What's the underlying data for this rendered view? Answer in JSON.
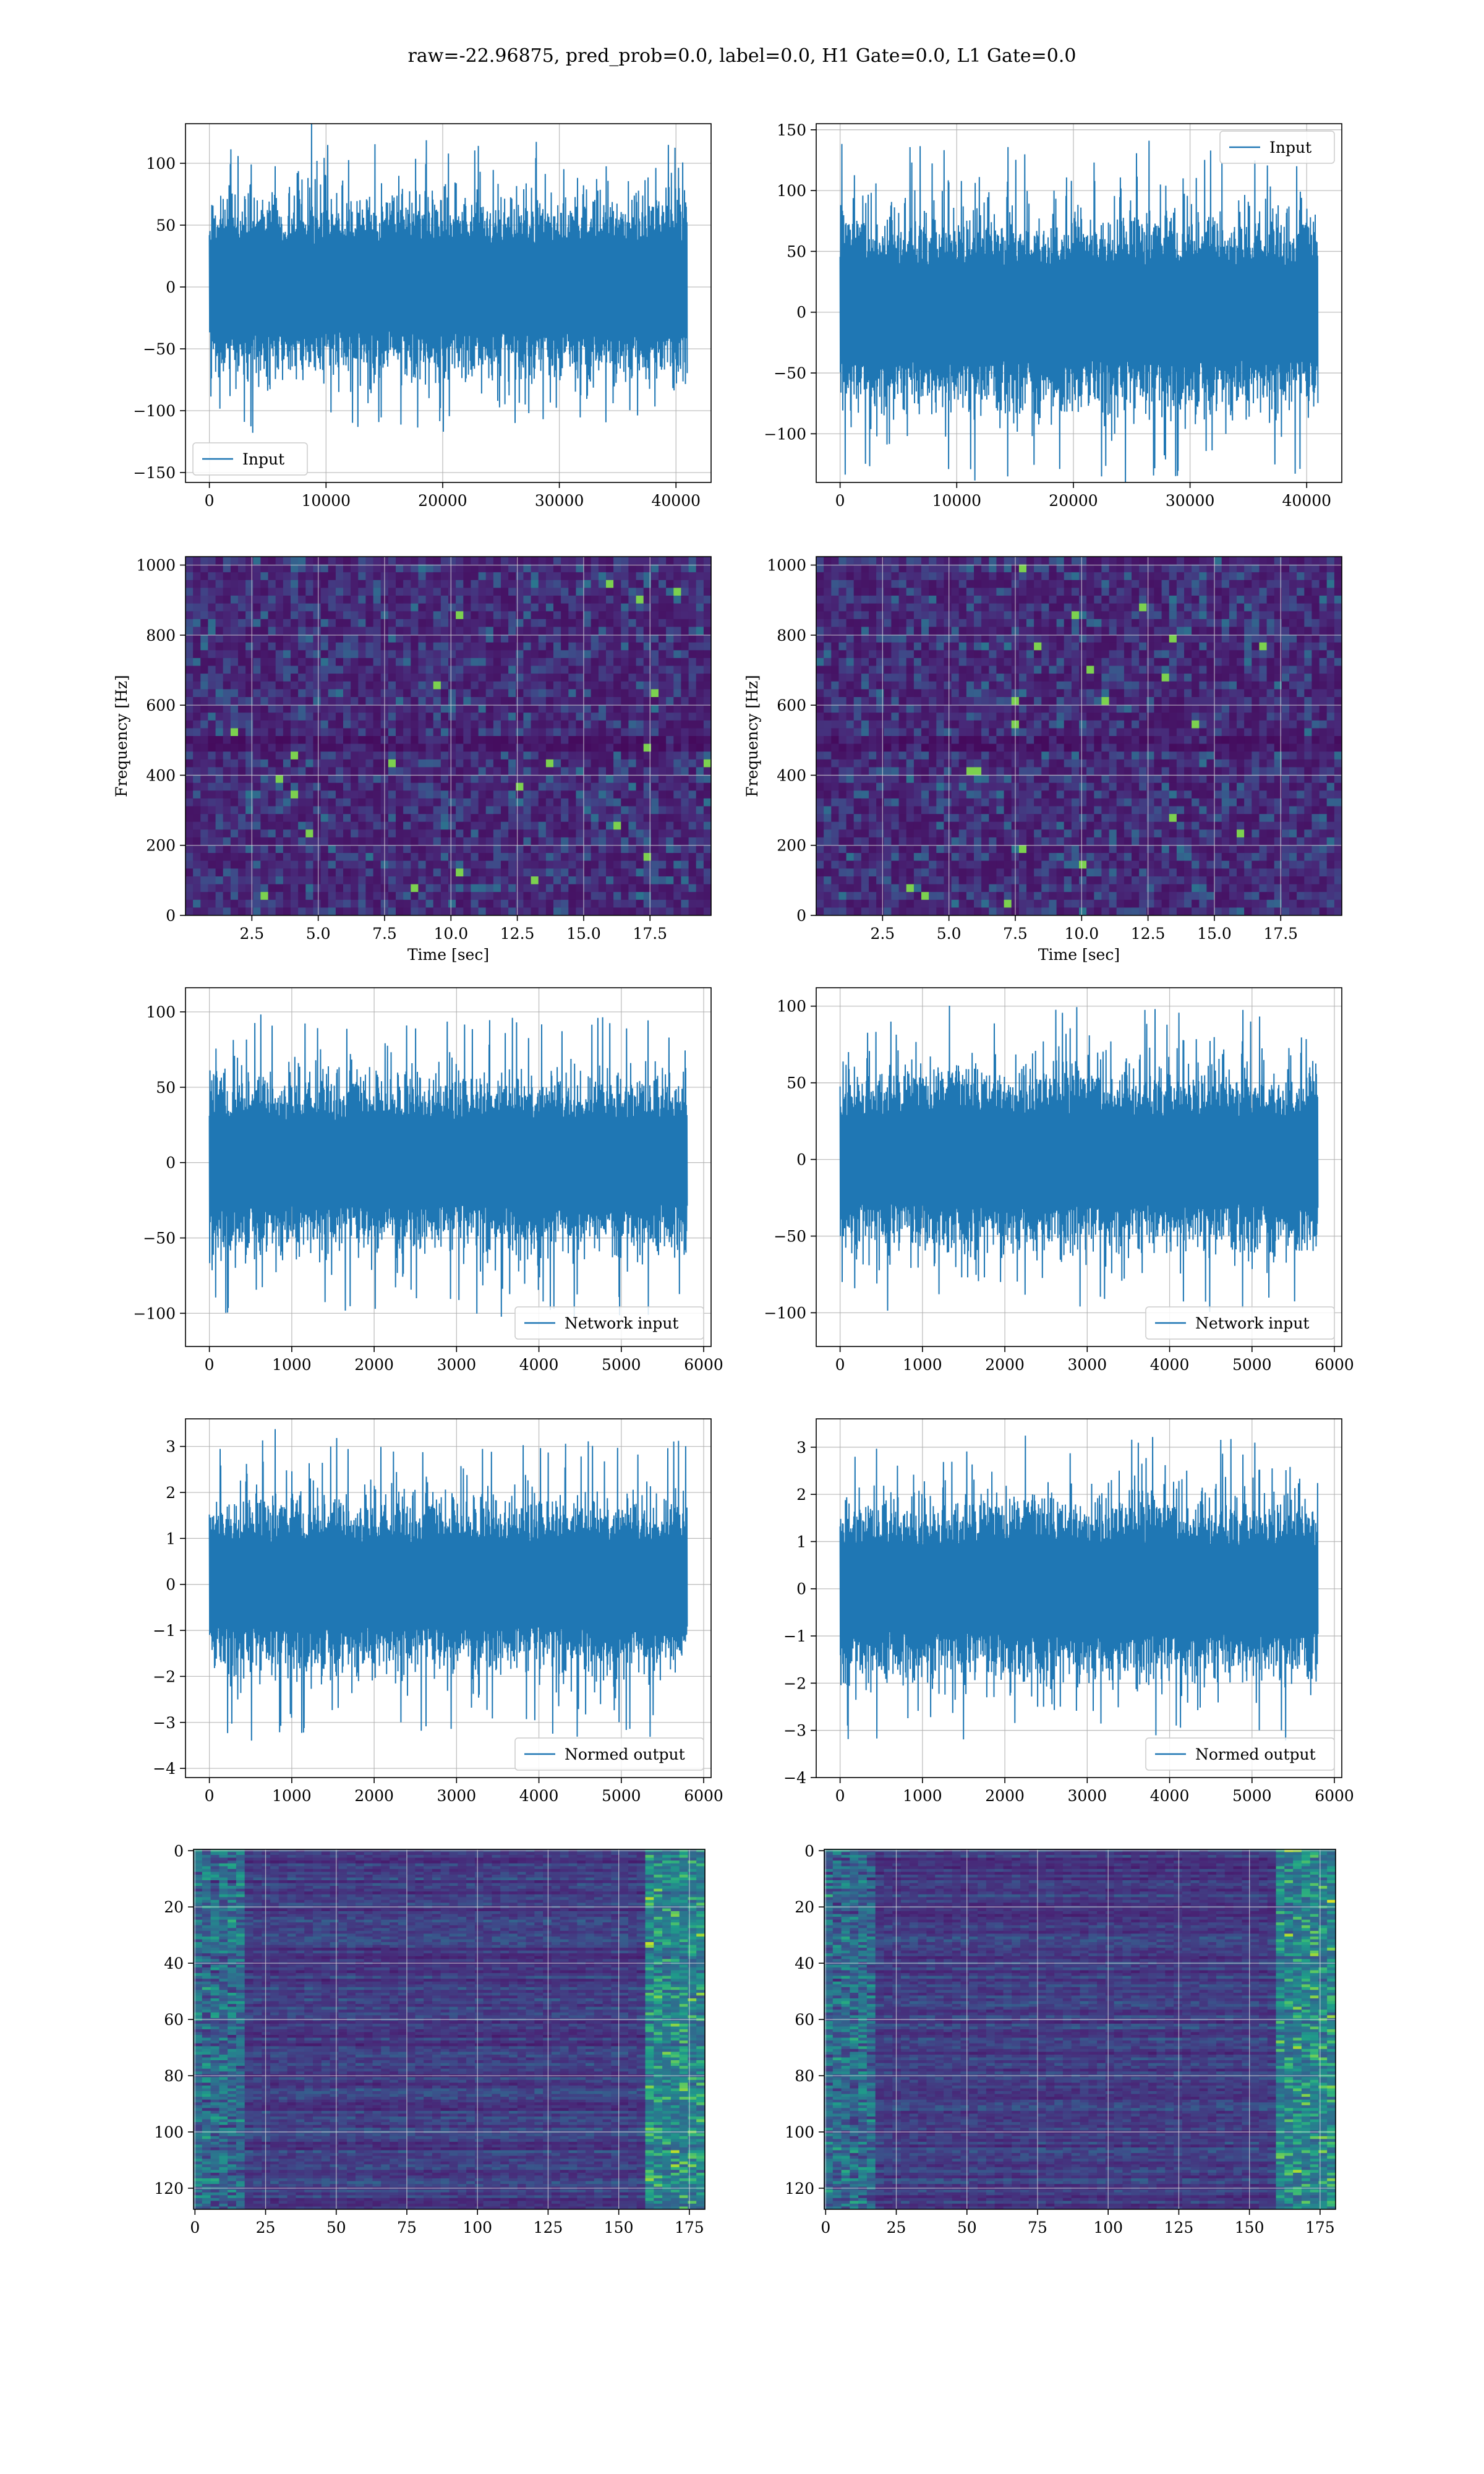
{
  "title": "raw=-22.96875, pred_prob=0.0, label=0.0, H1 Gate=0.0, L1 Gate=0.0",
  "colors": {
    "line": "#1f77b4",
    "grid": "#b0b0b0",
    "viridis_dark": "#440154",
    "viridis_mid": "#21918c",
    "viridis_bright": "#fde725"
  },
  "chart_data": [
    {
      "id": "ts-input-h1",
      "type": "line",
      "legend": "Input",
      "legend_loc": "lower-left",
      "xlim": [
        -2048,
        43008
      ],
      "ylim": [
        -158,
        132
      ],
      "xticks": [
        0,
        10000,
        20000,
        30000,
        40000
      ],
      "xtick_labels": [
        "0",
        "10000",
        "20000",
        "30000",
        "40000"
      ],
      "yticks": [
        -150,
        -100,
        -50,
        0,
        50,
        100
      ],
      "ytick_labels": [
        "−150",
        "−100",
        "−50",
        "0",
        "50",
        "100"
      ],
      "x_range": [
        0,
        40960
      ],
      "band": 50,
      "peak": 120,
      "grid": true
    },
    {
      "id": "ts-input-l1",
      "type": "line",
      "legend": "Input",
      "legend_loc": "upper-right",
      "xlim": [
        -2048,
        43008
      ],
      "ylim": [
        -140,
        155
      ],
      "xticks": [
        0,
        10000,
        20000,
        30000,
        40000
      ],
      "xtick_labels": [
        "0",
        "10000",
        "20000",
        "30000",
        "40000"
      ],
      "yticks": [
        -100,
        -50,
        0,
        50,
        100,
        150
      ],
      "ytick_labels": [
        "−100",
        "−50",
        "0",
        "50",
        "100",
        "150"
      ],
      "x_range": [
        0,
        40960
      ],
      "band": 55,
      "peak": 142,
      "grid": true
    },
    {
      "id": "spec-h1",
      "type": "heatmap",
      "xlabel": "Time [sec]",
      "ylabel": "Frequency [Hz]",
      "xlim": [
        0,
        19.8
      ],
      "ylim": [
        0,
        1024
      ],
      "xticks": [
        2.5,
        5.0,
        7.5,
        10.0,
        12.5,
        15.0,
        17.5
      ],
      "xtick_labels": [
        "2.5",
        "5.0",
        "7.5",
        "10.0",
        "12.5",
        "15.0",
        "17.5"
      ],
      "yticks": [
        0,
        200,
        400,
        600,
        800,
        1000
      ],
      "ytick_labels": [
        "0",
        "200",
        "400",
        "600",
        "800",
        "1000"
      ],
      "grid": true
    },
    {
      "id": "spec-l1",
      "type": "heatmap",
      "xlabel": "Time [sec]",
      "ylabel": "Frequency [Hz]",
      "xlim": [
        0,
        19.8
      ],
      "ylim": [
        0,
        1024
      ],
      "xticks": [
        2.5,
        5.0,
        7.5,
        10.0,
        12.5,
        15.0,
        17.5
      ],
      "xtick_labels": [
        "2.5",
        "5.0",
        "7.5",
        "10.0",
        "12.5",
        "15.0",
        "17.5"
      ],
      "yticks": [
        0,
        200,
        400,
        600,
        800,
        1000
      ],
      "ytick_labels": [
        "0",
        "200",
        "400",
        "600",
        "800",
        "1000"
      ],
      "grid": true
    },
    {
      "id": "net-input-h1",
      "type": "line",
      "legend": "Network input",
      "legend_loc": "lower-right",
      "xlim": [
        -290,
        6090
      ],
      "ylim": [
        -122,
        116
      ],
      "xticks": [
        0,
        1000,
        2000,
        3000,
        4000,
        5000,
        6000
      ],
      "xtick_labels": [
        "0",
        "1000",
        "2000",
        "3000",
        "4000",
        "5000",
        "6000"
      ],
      "yticks": [
        -100,
        -50,
        0,
        50,
        100
      ],
      "ytick_labels": [
        "−100",
        "−50",
        "0",
        "50",
        "100"
      ],
      "x_range": [
        0,
        5800
      ],
      "band": 40,
      "peak": 105,
      "grid": true
    },
    {
      "id": "net-input-l1",
      "type": "line",
      "legend": "Network input",
      "legend_loc": "lower-right",
      "xlim": [
        -290,
        6090
      ],
      "ylim": [
        -122,
        112
      ],
      "xticks": [
        0,
        1000,
        2000,
        3000,
        4000,
        5000,
        6000
      ],
      "xtick_labels": [
        "0",
        "1000",
        "2000",
        "3000",
        "4000",
        "5000",
        "6000"
      ],
      "yticks": [
        -100,
        -50,
        0,
        50,
        100
      ],
      "ytick_labels": [
        "−100",
        "−50",
        "0",
        "50",
        "100"
      ],
      "x_range": [
        0,
        5800
      ],
      "band": 40,
      "peak": 102,
      "grid": true
    },
    {
      "id": "normed-h1",
      "type": "line",
      "legend": "Normed output",
      "legend_loc": "lower-right",
      "xlim": [
        -290,
        6090
      ],
      "ylim": [
        -4.2,
        3.6
      ],
      "xticks": [
        0,
        1000,
        2000,
        3000,
        4000,
        5000,
        6000
      ],
      "xtick_labels": [
        "0",
        "1000",
        "2000",
        "3000",
        "4000",
        "5000",
        "6000"
      ],
      "yticks": [
        -4,
        -3,
        -2,
        -1,
        0,
        1,
        2,
        3
      ],
      "ytick_labels": [
        "−4",
        "−3",
        "−2",
        "−1",
        "0",
        "1",
        "2",
        "3"
      ],
      "x_range": [
        0,
        5800
      ],
      "band": 1.3,
      "peak": 3.4,
      "grid": true
    },
    {
      "id": "normed-l1",
      "type": "line",
      "legend": "Normed output",
      "legend_loc": "lower-right",
      "xlim": [
        -290,
        6090
      ],
      "ylim": [
        -4.0,
        3.6
      ],
      "xticks": [
        0,
        1000,
        2000,
        3000,
        4000,
        5000,
        6000
      ],
      "xtick_labels": [
        "0",
        "1000",
        "2000",
        "3000",
        "4000",
        "5000",
        "6000"
      ],
      "yticks": [
        -4,
        -3,
        -2,
        -1,
        0,
        1,
        2,
        3
      ],
      "ytick_labels": [
        "−4",
        "−3",
        "−2",
        "−1",
        "0",
        "1",
        "2",
        "3"
      ],
      "x_range": [
        0,
        5800
      ],
      "band": 1.3,
      "peak": 3.3,
      "grid": true
    },
    {
      "id": "features-h1",
      "type": "heatmap",
      "origin": "top",
      "xlim": [
        -0.5,
        180.5
      ],
      "ylim": [
        127.5,
        -0.5
      ],
      "xticks": [
        0,
        25,
        50,
        75,
        100,
        125,
        150,
        175
      ],
      "xtick_labels": [
        "0",
        "25",
        "50",
        "75",
        "100",
        "125",
        "150",
        "175"
      ],
      "yticks": [
        0,
        20,
        40,
        60,
        80,
        100,
        120
      ],
      "ytick_labels": [
        "0",
        "20",
        "40",
        "60",
        "80",
        "100",
        "120"
      ],
      "grid": true
    },
    {
      "id": "features-l1",
      "type": "heatmap",
      "origin": "top",
      "xlim": [
        -0.5,
        180.5
      ],
      "ylim": [
        127.5,
        -0.5
      ],
      "xticks": [
        0,
        25,
        50,
        75,
        100,
        125,
        150,
        175
      ],
      "xtick_labels": [
        "0",
        "25",
        "50",
        "75",
        "100",
        "125",
        "150",
        "175"
      ],
      "yticks": [
        0,
        20,
        40,
        60,
        80,
        100,
        120
      ],
      "ytick_labels": [
        "0",
        "20",
        "40",
        "60",
        "80",
        "100",
        "120"
      ],
      "grid": true
    }
  ]
}
